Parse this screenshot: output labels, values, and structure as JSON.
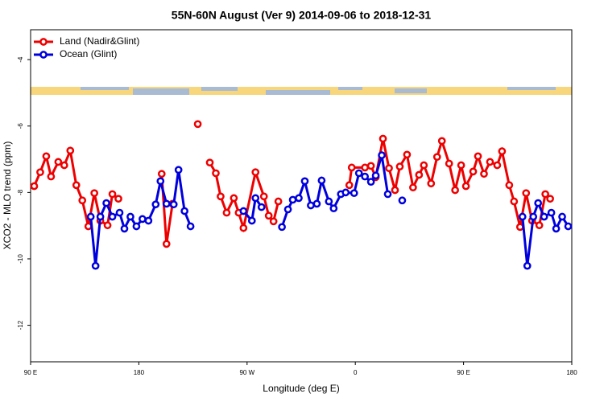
{
  "chart_data": {
    "type": "line",
    "title": "55N-60N August (Ver 9)   2014-09-06 to 2018-12-31",
    "xlabel": "Longitude (deg E)",
    "ylabel": "XCO2 - MLO trend (ppm)",
    "xlim": [
      90,
      540
    ],
    "xticks": [
      {
        "value": 90,
        "label": "90 E"
      },
      180,
      {
        "value": 270,
        "label": "90 W"
      },
      {
        "value": 360,
        "label": "0"
      },
      {
        "value": 450,
        "label": "90 E"
      },
      {
        "value": 540,
        "label": "180"
      }
    ],
    "ylim": [
      -13.1,
      -3.1
    ],
    "yticks": [
      -4,
      -6,
      -8,
      -10,
      -12
    ],
    "legend": "upper left",
    "grid": false,
    "series": [
      {
        "name": "Land (Nadir&Glint)",
        "color": "#ee0000",
        "x": [
          93,
          98,
          103,
          107,
          113,
          118,
          123,
          128,
          133,
          138,
          143,
          148,
          154,
          158,
          163,
          null,
          199,
          203,
          208,
          null,
          229,
          null,
          239,
          244,
          248,
          253,
          259,
          263,
          267,
          277,
          284,
          288,
          292,
          296,
          null,
          355,
          357,
          368,
          373,
          377,
          383,
          388,
          393,
          397,
          403,
          408,
          413,
          417,
          423,
          428,
          432,
          438,
          443,
          448,
          452,
          458,
          462,
          467,
          472,
          478,
          482,
          488,
          492,
          497,
          502,
          507,
          513,
          518,
          522
        ],
        "values": [
          -7.81,
          -7.39,
          -6.91,
          -7.52,
          -7.08,
          -7.18,
          -6.74,
          -7.78,
          -8.24,
          -9.02,
          -8.02,
          -8.85,
          -8.99,
          -8.05,
          -8.19,
          null,
          -7.44,
          -9.55,
          -8.34,
          null,
          -5.94,
          null,
          -7.1,
          -7.42,
          -8.12,
          -8.61,
          -8.17,
          -8.61,
          -9.07,
          -7.39,
          -8.12,
          -8.7,
          -8.87,
          -8.27,
          null,
          -7.78,
          -7.25,
          -7.25,
          -7.2,
          -7.54,
          -6.38,
          -7.27,
          -7.93,
          -7.22,
          -6.86,
          -7.85,
          -7.47,
          -7.18,
          -7.73,
          -6.93,
          -6.45,
          -7.13,
          -7.93,
          -7.18,
          -7.81,
          -7.37,
          -6.91,
          -7.44,
          -7.08,
          -7.18,
          -6.76,
          -7.78,
          -8.27,
          -9.04,
          -8.02,
          -8.85,
          -8.99,
          -8.05,
          -8.19
        ]
      },
      {
        "name": "Ocean (Glint)",
        "color": "#0000dd",
        "x": [
          140,
          144,
          148,
          153,
          158,
          164,
          168,
          173,
          178,
          183,
          188,
          194,
          198,
          203,
          209,
          213,
          218,
          223,
          null,
          267,
          274,
          277,
          282,
          null,
          299,
          304,
          308,
          313,
          318,
          323,
          328,
          332,
          338,
          342,
          348,
          352,
          359,
          363,
          368,
          373,
          377,
          382,
          387,
          null,
          399,
          null,
          499,
          503,
          508,
          512,
          517,
          523,
          527,
          532,
          537
        ],
        "values": [
          -8.73,
          -10.21,
          -8.73,
          -8.32,
          -8.73,
          -8.61,
          -9.09,
          -8.73,
          -9.02,
          -8.8,
          -8.85,
          -8.36,
          -7.66,
          -8.34,
          -8.36,
          -7.32,
          -8.56,
          -9.02,
          null,
          -8.56,
          -8.85,
          -8.17,
          -8.44,
          null,
          -9.04,
          -8.51,
          -8.22,
          -8.17,
          -7.66,
          -8.39,
          -8.34,
          -7.64,
          -8.27,
          -8.48,
          -8.05,
          -8.0,
          -8.02,
          -7.42,
          -7.52,
          -7.68,
          -7.49,
          -6.88,
          -8.05,
          null,
          -8.24,
          null,
          -8.73,
          -10.21,
          -8.73,
          -8.32,
          -8.73,
          -8.61,
          -9.09,
          -8.73,
          -9.02
        ]
      }
    ]
  }
}
